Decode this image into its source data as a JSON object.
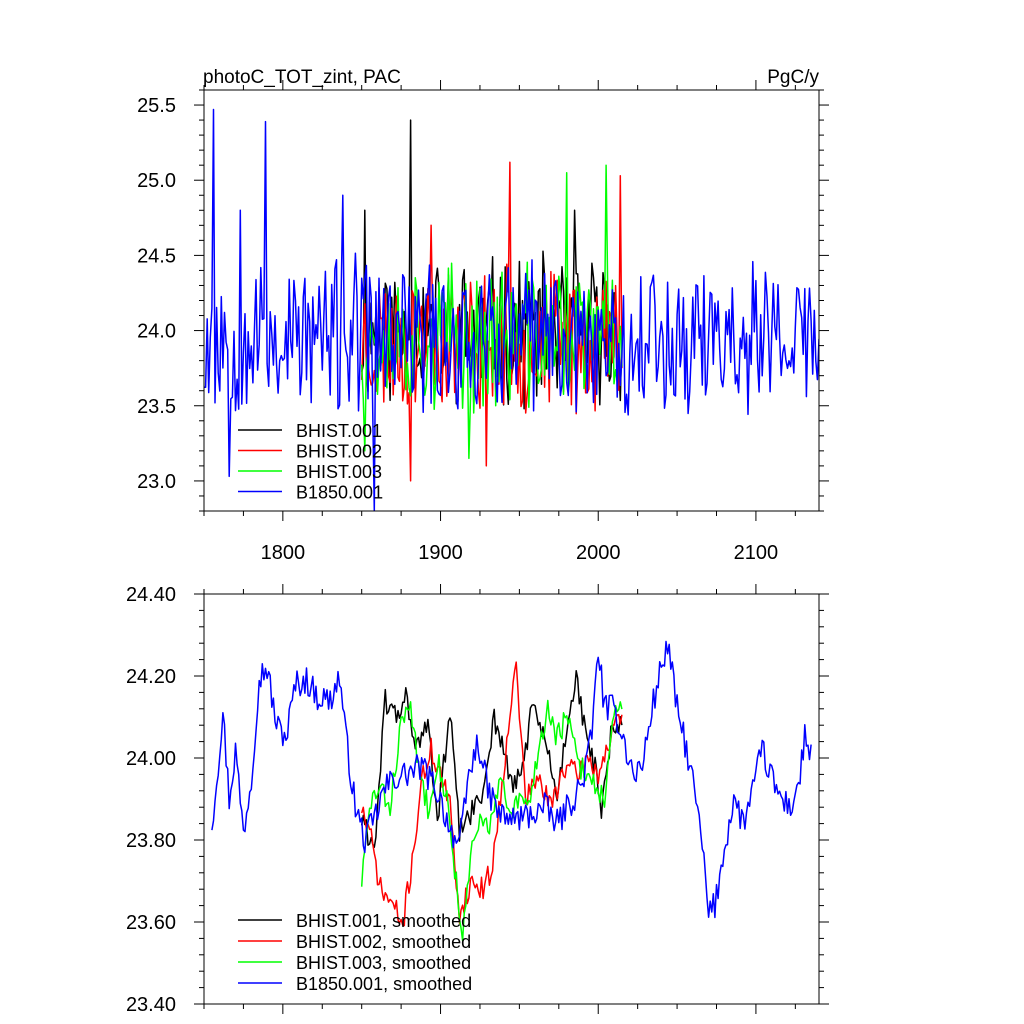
{
  "chart_data": [
    {
      "type": "line",
      "title_left": "photoC_TOT_zint, PAC",
      "title_right": "PgC/y",
      "xlim": [
        1750,
        2140
      ],
      "ylim": [
        22.8,
        25.6
      ],
      "x_ticks": [
        1800,
        1900,
        2000,
        2100
      ],
      "y_ticks": [
        23.0,
        23.5,
        24.0,
        24.5,
        25.0,
        25.5
      ],
      "y_tick_labels": [
        "23.0",
        "23.5",
        "24.0",
        "24.5",
        "25.0",
        "25.5"
      ],
      "legend_position": "bottom-left",
      "series": [
        {
          "name": "BHIST.001",
          "color": "#000000",
          "x_start": 1850,
          "x_end": 2015,
          "base": 24.0,
          "amp": 0.42,
          "seed": 11,
          "spikes": [
            [
              1881,
              25.4
            ],
            [
              1852,
              24.8
            ],
            [
              1985,
              24.8
            ]
          ]
        },
        {
          "name": "BHIST.002",
          "color": "#ff0000",
          "x_start": 1850,
          "x_end": 2015,
          "base": 23.92,
          "amp": 0.42,
          "seed": 23,
          "spikes": [
            [
              1944,
              25.12
            ],
            [
              1881,
              23.0
            ],
            [
              1929,
              23.1
            ],
            [
              2014,
              25.03
            ],
            [
              1894,
              24.7
            ]
          ]
        },
        {
          "name": "BHIST.003",
          "color": "#00ff00",
          "x_start": 1850,
          "x_end": 2015,
          "base": 23.95,
          "amp": 0.42,
          "seed": 37,
          "spikes": [
            [
              1980,
              25.05
            ],
            [
              2005,
              25.1
            ],
            [
              1918,
              23.15
            ],
            [
              1852,
              23.2
            ]
          ]
        },
        {
          "name": "B1850.001",
          "color": "#0000ff",
          "x_start": 1750,
          "x_end": 2140,
          "base": 23.95,
          "amp": 0.46,
          "seed": 53,
          "spikes": [
            [
              1756,
              25.47
            ],
            [
              1789,
              25.39
            ],
            [
              1858,
              22.8
            ],
            [
              1766,
              23.03
            ],
            [
              1773,
              24.8
            ],
            [
              1838,
              24.9
            ]
          ]
        }
      ]
    },
    {
      "type": "line",
      "xlim": [
        1750,
        2140
      ],
      "ylim": [
        23.4,
        24.4
      ],
      "x_ticks": [
        1800,
        1900,
        2000,
        2100
      ],
      "y_ticks": [
        23.4,
        23.6,
        23.8,
        24.0,
        24.2,
        24.4
      ],
      "y_tick_labels": [
        "23.40",
        "23.60",
        "23.80",
        "24.00",
        "24.20",
        "24.40"
      ],
      "legend_position": "bottom-left",
      "series": [
        {
          "name": "BHIST.001, smoothed",
          "color": "#000000",
          "x_start": 1850,
          "x_end": 2015,
          "noise": 0.03,
          "seed": 61,
          "anchors": [
            [
              1850,
              23.85
            ],
            [
              1858,
              23.78
            ],
            [
              1865,
              24.14
            ],
            [
              1872,
              24.1
            ],
            [
              1878,
              24.15
            ],
            [
              1885,
              24.02
            ],
            [
              1892,
              24.08
            ],
            [
              1898,
              23.85
            ],
            [
              1906,
              24.11
            ],
            [
              1912,
              23.82
            ],
            [
              1918,
              23.86
            ],
            [
              1926,
              23.9
            ],
            [
              1934,
              24.1
            ],
            [
              1940,
              24.02
            ],
            [
              1946,
              23.92
            ],
            [
              1952,
              23.98
            ],
            [
              1958,
              24.12
            ],
            [
              1966,
              24.05
            ],
            [
              1974,
              23.9
            ],
            [
              1980,
              24.08
            ],
            [
              1986,
              24.2
            ],
            [
              1992,
              24.05
            ],
            [
              1998,
              23.98
            ],
            [
              2002,
              23.86
            ],
            [
              2008,
              24.05
            ],
            [
              2015,
              24.08
            ]
          ]
        },
        {
          "name": "BHIST.002, smoothed",
          "color": "#ff0000",
          "x_start": 1850,
          "x_end": 2015,
          "noise": 0.03,
          "seed": 71,
          "anchors": [
            [
              1850,
              23.88
            ],
            [
              1856,
              23.8
            ],
            [
              1862,
              23.68
            ],
            [
              1870,
              23.64
            ],
            [
              1876,
              23.59
            ],
            [
              1882,
              23.75
            ],
            [
              1888,
              23.94
            ],
            [
              1894,
              24.02
            ],
            [
              1900,
              23.96
            ],
            [
              1906,
              23.88
            ],
            [
              1912,
              23.62
            ],
            [
              1920,
              23.7
            ],
            [
              1926,
              23.68
            ],
            [
              1932,
              23.72
            ],
            [
              1938,
              23.9
            ],
            [
              1944,
              24.12
            ],
            [
              1948,
              24.22
            ],
            [
              1954,
              23.9
            ],
            [
              1962,
              23.95
            ],
            [
              1970,
              23.88
            ],
            [
              1978,
              23.98
            ],
            [
              1986,
              23.96
            ],
            [
              1994,
              24.0
            ],
            [
              2000,
              23.96
            ],
            [
              2008,
              24.05
            ],
            [
              2015,
              24.1
            ]
          ]
        },
        {
          "name": "BHIST.003, smoothed",
          "color": "#00ff00",
          "x_start": 1850,
          "x_end": 2015,
          "noise": 0.03,
          "seed": 83,
          "anchors": [
            [
              1850,
              23.7
            ],
            [
              1856,
              23.9
            ],
            [
              1862,
              23.92
            ],
            [
              1868,
              23.88
            ],
            [
              1874,
              24.06
            ],
            [
              1880,
              24.14
            ],
            [
              1886,
              23.98
            ],
            [
              1892,
              23.88
            ],
            [
              1898,
              24.0
            ],
            [
              1904,
              23.9
            ],
            [
              1910,
              23.7
            ],
            [
              1914,
              23.56
            ],
            [
              1920,
              23.78
            ],
            [
              1926,
              23.85
            ],
            [
              1932,
              23.84
            ],
            [
              1938,
              23.95
            ],
            [
              1944,
              23.85
            ],
            [
              1950,
              23.9
            ],
            [
              1956,
              23.88
            ],
            [
              1962,
              24.02
            ],
            [
              1968,
              24.12
            ],
            [
              1974,
              24.05
            ],
            [
              1980,
              24.1
            ],
            [
              1988,
              23.98
            ],
            [
              1996,
              23.95
            ],
            [
              2004,
              23.9
            ],
            [
              2010,
              24.1
            ],
            [
              2015,
              24.12
            ]
          ]
        },
        {
          "name": "B1850.001, smoothed",
          "color": "#0000ff",
          "x_start": 1755,
          "x_end": 2135,
          "noise": 0.035,
          "seed": 97,
          "anchors": [
            [
              1755,
              23.84
            ],
            [
              1758,
              23.95
            ],
            [
              1762,
              24.11
            ],
            [
              1766,
              23.9
            ],
            [
              1770,
              24.02
            ],
            [
              1775,
              23.82
            ],
            [
              1780,
              23.95
            ],
            [
              1785,
              24.2
            ],
            [
              1790,
              24.22
            ],
            [
              1796,
              24.08
            ],
            [
              1802,
              24.05
            ],
            [
              1808,
              24.18
            ],
            [
              1815,
              24.19
            ],
            [
              1822,
              24.15
            ],
            [
              1830,
              24.14
            ],
            [
              1836,
              24.2
            ],
            [
              1840,
              24.05
            ],
            [
              1846,
              23.88
            ],
            [
              1852,
              23.8
            ],
            [
              1858,
              23.85
            ],
            [
              1864,
              23.92
            ],
            [
              1870,
              23.95
            ],
            [
              1878,
              23.96
            ],
            [
              1888,
              23.98
            ],
            [
              1898,
              23.92
            ],
            [
              1905,
              23.84
            ],
            [
              1912,
              23.78
            ],
            [
              1918,
              23.96
            ],
            [
              1924,
              24.04
            ],
            [
              1930,
              23.92
            ],
            [
              1938,
              23.86
            ],
            [
              1946,
              23.85
            ],
            [
              1956,
              23.86
            ],
            [
              1966,
              23.88
            ],
            [
              1974,
              23.84
            ],
            [
              1984,
              23.9
            ],
            [
              1990,
              23.94
            ],
            [
              1996,
              24.06
            ],
            [
              2000,
              24.27
            ],
            [
              2004,
              24.12
            ],
            [
              2010,
              24.12
            ],
            [
              2016,
              24.05
            ],
            [
              2022,
              23.96
            ],
            [
              2028,
              23.98
            ],
            [
              2034,
              24.12
            ],
            [
              2040,
              24.22
            ],
            [
              2044,
              24.28
            ],
            [
              2050,
              24.12
            ],
            [
              2056,
              24.02
            ],
            [
              2062,
              23.9
            ],
            [
              2066,
              23.78
            ],
            [
              2070,
              23.62
            ],
            [
              2074,
              23.64
            ],
            [
              2080,
              23.78
            ],
            [
              2086,
              23.9
            ],
            [
              2092,
              23.84
            ],
            [
              2098,
              23.92
            ],
            [
              2104,
              24.02
            ],
            [
              2110,
              23.95
            ],
            [
              2116,
              23.9
            ],
            [
              2122,
              23.88
            ],
            [
              2128,
              23.95
            ],
            [
              2131,
              24.06
            ],
            [
              2135,
              24.0
            ]
          ]
        }
      ]
    }
  ]
}
